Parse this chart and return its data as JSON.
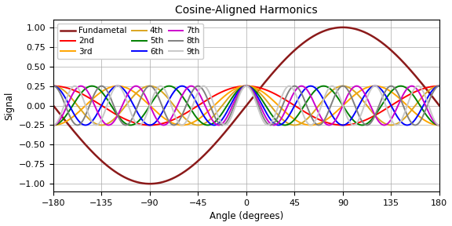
{
  "title": "Cosine-Aligned Harmonics",
  "xlabel": "Angle (degrees)",
  "ylabel": "Signal",
  "xlim": [
    -180,
    180
  ],
  "ylim": [
    -1.1,
    1.1
  ],
  "xticks": [
    -180,
    -135,
    -90,
    -45,
    0,
    45,
    90,
    135,
    180
  ],
  "yticks": [
    -1.0,
    -0.75,
    -0.5,
    -0.25,
    0.0,
    0.25,
    0.5,
    0.75,
    1.0
  ],
  "harmonics": [
    {
      "n": 1,
      "amplitude": 1.0,
      "color": "#8B1A1A",
      "label": "Fundametal",
      "lw": 1.8,
      "use_sin": true
    },
    {
      "n": 2,
      "amplitude": 0.25,
      "color": "#FF0000",
      "label": "2nd",
      "lw": 1.4,
      "use_sin": false
    },
    {
      "n": 3,
      "amplitude": 0.25,
      "color": "#FFA500",
      "label": "3rd",
      "lw": 1.4,
      "use_sin": false
    },
    {
      "n": 4,
      "amplitude": 0.25,
      "color": "#DAA520",
      "label": "4th",
      "lw": 1.4,
      "use_sin": false
    },
    {
      "n": 5,
      "amplitude": 0.25,
      "color": "#008000",
      "label": "5th",
      "lw": 1.4,
      "use_sin": false
    },
    {
      "n": 6,
      "amplitude": 0.25,
      "color": "#0000FF",
      "label": "6th",
      "lw": 1.4,
      "use_sin": false
    },
    {
      "n": 7,
      "amplitude": 0.25,
      "color": "#CC00CC",
      "label": "7th",
      "lw": 1.4,
      "use_sin": false
    },
    {
      "n": 8,
      "amplitude": 0.25,
      "color": "#808080",
      "label": "8th",
      "lw": 1.4,
      "use_sin": false
    },
    {
      "n": 9,
      "amplitude": 0.25,
      "color": "#C8C8C8",
      "label": "9th",
      "lw": 1.4,
      "use_sin": false
    }
  ],
  "figsize": [
    5.76,
    2.88
  ],
  "dpi": 100,
  "legend_ncol": 3,
  "legend_fontsize": 7.5,
  "title_fontsize": 10,
  "axis_fontsize": 8.5,
  "tick_fontsize": 8,
  "grid_color": "#aaaaaa",
  "grid_lw": 0.5,
  "bg_color": "#ffffff"
}
